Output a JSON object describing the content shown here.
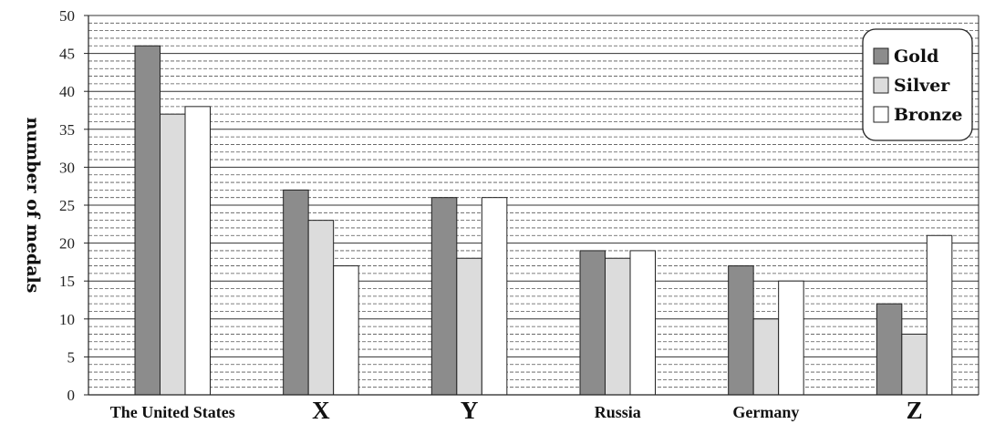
{
  "chart_data": {
    "type": "bar",
    "ylabel": "number of medals",
    "xlabel": "",
    "ylim": [
      0,
      50
    ],
    "y_ticks": [
      0,
      5,
      10,
      15,
      20,
      25,
      30,
      35,
      40,
      45,
      50
    ],
    "grid": true,
    "legend_position": "top-right",
    "categories": [
      "The United States",
      "X",
      "Y",
      "Russia",
      "Germany",
      "Z"
    ],
    "series": [
      {
        "name": "Gold",
        "color": "#8c8c8c",
        "values": [
          46,
          27,
          26,
          19,
          17,
          12
        ]
      },
      {
        "name": "Silver",
        "color": "#dcdcdc",
        "values": [
          37,
          23,
          18,
          18,
          10,
          8
        ]
      },
      {
        "name": "Bronze",
        "color": "#ffffff",
        "values": [
          38,
          17,
          26,
          19,
          15,
          21
        ]
      }
    ]
  }
}
